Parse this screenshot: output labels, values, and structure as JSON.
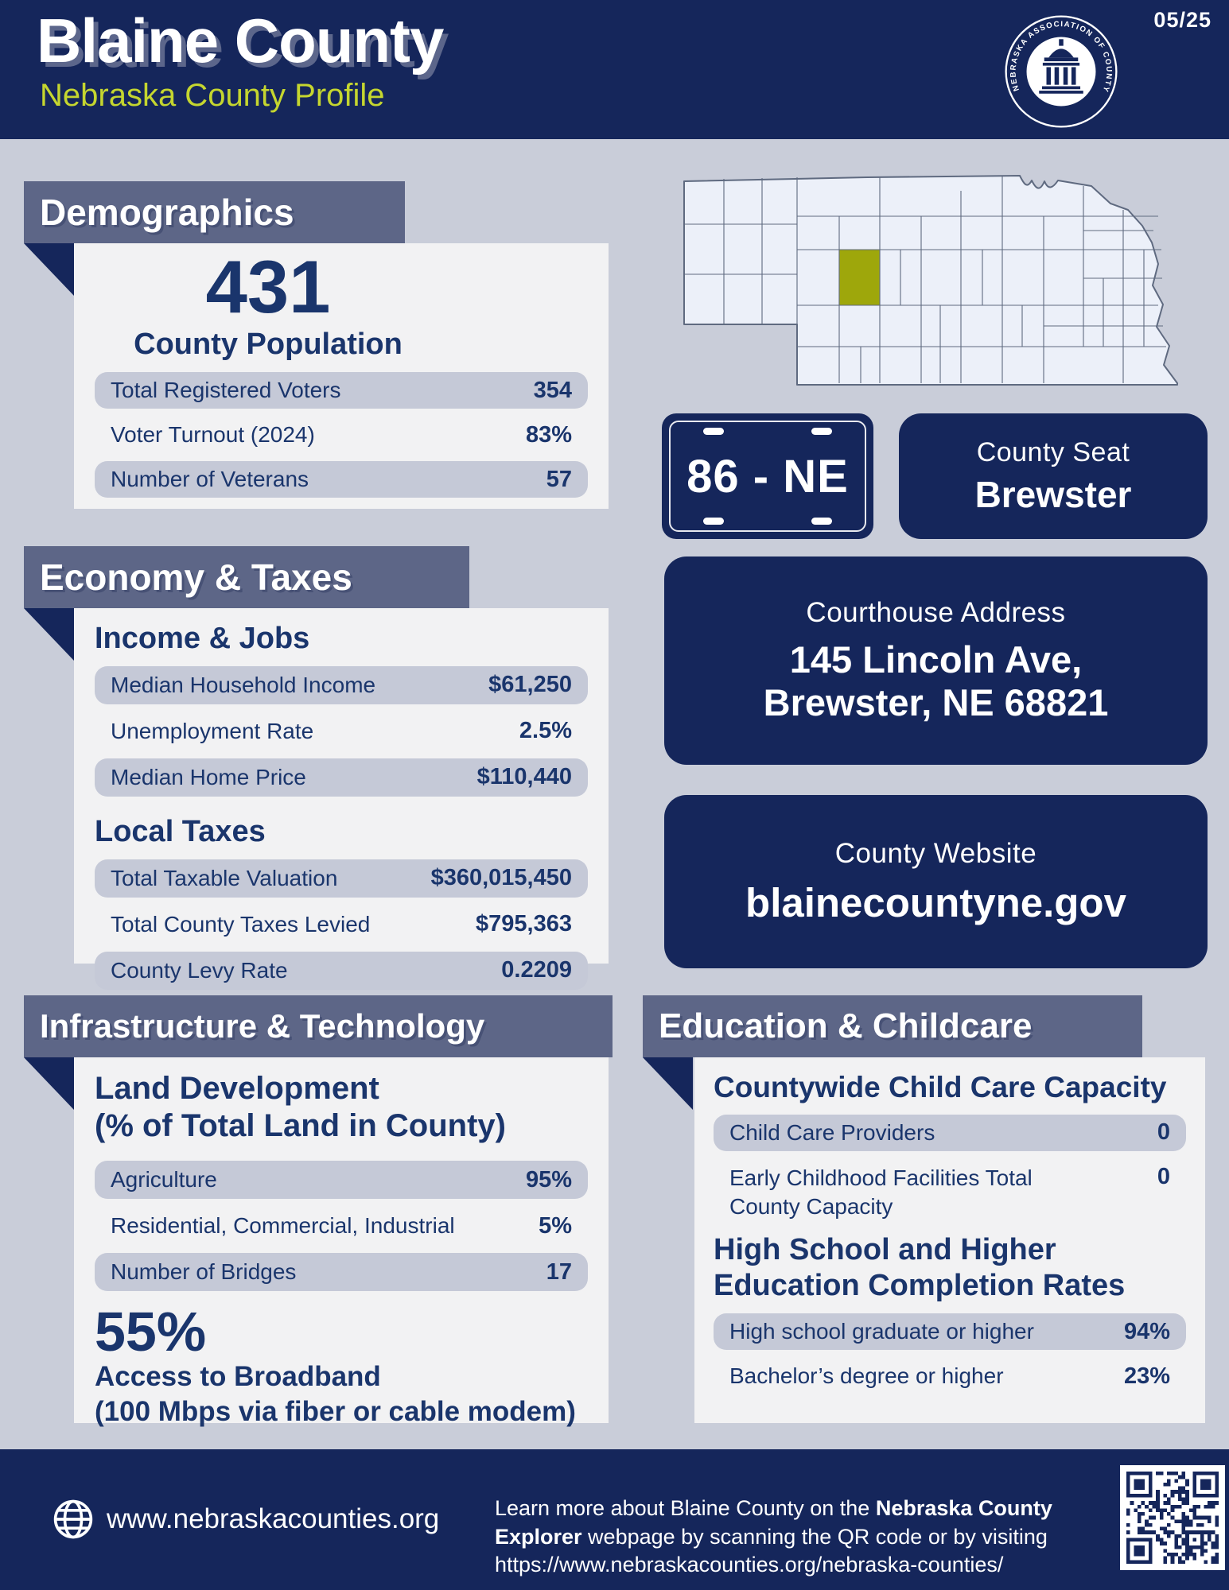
{
  "colors": {
    "navy": "#15265B",
    "bar": "#5D6687",
    "page_bg": "#C9CDD9",
    "card": "#F2F2F3",
    "pill": "#C5C9D7",
    "text_navy": "#1A356C",
    "accent_yellow": "#C5D62F",
    "county_highlight": "#9EA70B"
  },
  "header": {
    "title": "Blaine County",
    "subtitle": "Nebraska County Profile",
    "date": "05/25",
    "seal_text": "NEBRASKA ASSOCIATION OF COUNTY OFFICIALS"
  },
  "map": {
    "state": "Nebraska",
    "highlighted_county": "Blaine"
  },
  "plate": {
    "number": "86 - NE"
  },
  "county_seat": {
    "label": "County Seat",
    "value": "Brewster"
  },
  "courthouse": {
    "label": "Courthouse Address",
    "line1": "145 Lincoln Ave,",
    "line2": "Brewster, NE 68821"
  },
  "website": {
    "label": "County Website",
    "value": "blainecountyne.gov"
  },
  "demographics": {
    "section_title": "Demographics",
    "population": "431",
    "population_label": "County Population",
    "rows": [
      {
        "label": "Total Registered Voters",
        "value": "354"
      },
      {
        "label": "Voter Turnout (2024)",
        "value": "83%"
      },
      {
        "label": "Number of Veterans",
        "value": "57"
      }
    ]
  },
  "economy": {
    "section_title": "Economy & Taxes",
    "income_title": "Income & Jobs",
    "income_rows": [
      {
        "label": "Median Household Income",
        "value": "$61,250"
      },
      {
        "label": "Unemployment Rate",
        "value": "2.5%"
      },
      {
        "label": "Median Home Price",
        "value": "$110,440"
      }
    ],
    "taxes_title": "Local Taxes",
    "tax_rows": [
      {
        "label": "Total Taxable Valuation",
        "value": "$360,015,450"
      },
      {
        "label": "Total County Taxes Levied",
        "value": "$795,363"
      },
      {
        "label": "County Levy Rate",
        "value": "0.2209"
      }
    ]
  },
  "infrastructure": {
    "section_title": "Infrastructure & Technology",
    "land_title_line1": "Land Development",
    "land_title_line2": "(% of Total Land in County)",
    "rows": [
      {
        "label": "Agriculture",
        "value": "95%"
      },
      {
        "label": "Residential, Commercial, Industrial",
        "value": "5%"
      },
      {
        "label": "Number of Bridges",
        "value": "17"
      }
    ],
    "broadband_value": "55%",
    "broadband_label_line1": "Access to Broadband",
    "broadband_label_line2": "(100 Mbps via fiber or cable modem)"
  },
  "education": {
    "section_title": "Education & Childcare",
    "childcare_title": "Countywide Child Care Capacity",
    "childcare_rows": [
      {
        "label": "Child Care Providers",
        "value": "0"
      },
      {
        "label": "Early Childhood Facilities Total County Capacity",
        "value": "0"
      }
    ],
    "completion_title_line1": "High School and Higher",
    "completion_title_line2": "Education Completion Rates",
    "completion_rows": [
      {
        "label": "High school graduate or higher",
        "value": "94%"
      },
      {
        "label": "Bachelor’s degree or higher",
        "value": "23%"
      }
    ]
  },
  "footer": {
    "website": "www.nebraskacounties.org",
    "text_pre": "Learn more about Blaine County on the ",
    "text_bold": "Nebraska County Explorer",
    "text_post": " webpage by scanning the QR code or by visiting",
    "url": "https://www.nebraskacounties.org/nebraska-counties/"
  }
}
